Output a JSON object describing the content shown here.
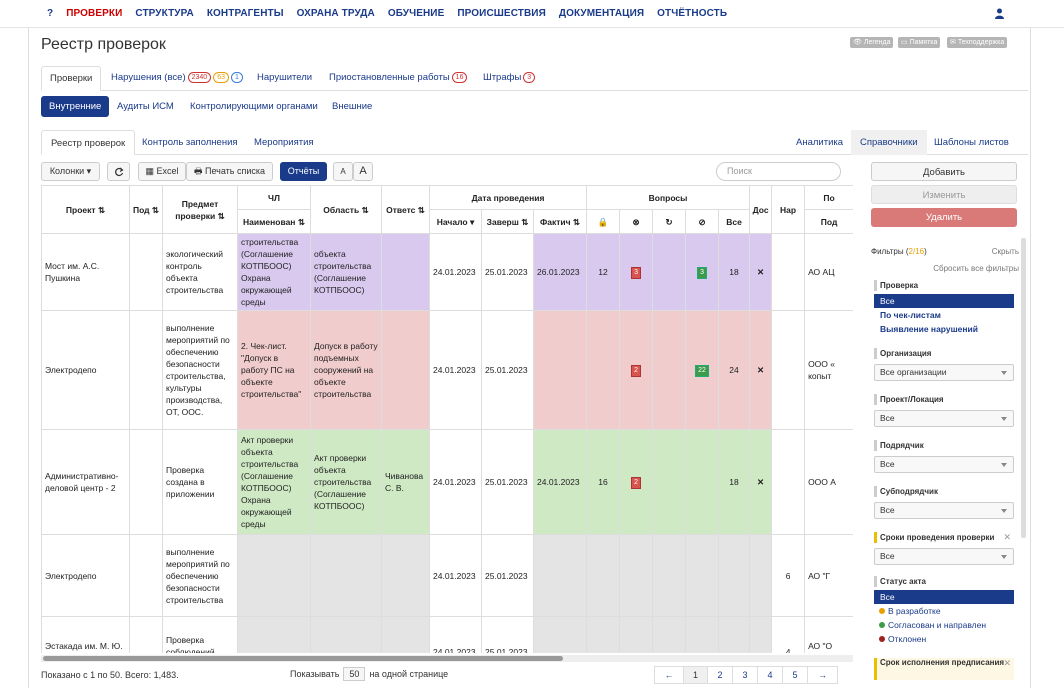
{
  "nav": {
    "help": "?",
    "items": [
      "ПРОВЕРКИ",
      "СТРУКТУРА",
      "КОНТРАГЕНТЫ",
      "ОХРАНА ТРУДА",
      "ОБУЧЕНИЕ",
      "ПРОИСШЕСТВИЯ",
      "ДОКУМЕНТАЦИЯ",
      "ОТЧЁТНОСТЬ"
    ],
    "active": "ПРОВЕРКИ"
  },
  "page": {
    "title": "Реестр проверок",
    "legend": "Легенда",
    "memo": "Памятка",
    "support": "Техподдержка"
  },
  "tabs1": {
    "checks": "Проверки",
    "violations": "Нарушения (все)",
    "v_count1": "2340",
    "v_count2": "63",
    "v_count3": "1",
    "violators": "Нарушители",
    "suspended": "Приостановленные работы",
    "s_count": "16",
    "fines": "Штрафы",
    "f_count": "3"
  },
  "subtabs": {
    "internal": "Внутренние",
    "audits": "Аудиты ИСМ",
    "control": "Контролирующими органами",
    "external": "Внешние"
  },
  "tabs2": {
    "registry": "Реестр проверок",
    "fill": "Контроль заполнения",
    "events": "Мероприятия",
    "analytics": "Аналитика",
    "refs": "Справочники",
    "templates": "Шаблоны листов"
  },
  "toolbar": {
    "columns": "Колонки",
    "excel": "Excel",
    "print": "Печать списка",
    "reports": "Отчёты",
    "font_small": "A",
    "font_large": "A",
    "search_placeholder": "Поиск"
  },
  "actions": {
    "add": "Добавить",
    "edit": "Изменить",
    "delete": "Удалить"
  },
  "grid": {
    "headers": {
      "project": "Проект",
      "sub": "Под",
      "subject": "Предмет проверки",
      "chl": "ЧЛ",
      "chl_name": "Наименован",
      "area": "Область",
      "resp": "Ответс",
      "date": "Дата проведения",
      "start": "Начало",
      "end": "Заверш",
      "fact": "Фактич",
      "questions": "Вопросы",
      "all": "Все",
      "doc": "Дос",
      "nar": "Нар",
      "po": "По",
      "pod": "Под"
    },
    "rows": [
      {
        "project": "Мост им. А.С. Пушкина",
        "subject": "экологический контроль объекта строительства",
        "name": "строительства (Соглашение КОТПБООС) Охрана окружающей среды",
        "area": "объекта строительства (Соглашение КОТПБООС)",
        "resp": "",
        "start": "24.01.2023",
        "end": "25.01.2023",
        "fact": "26.01.2023",
        "q1": "12",
        "q2": "3",
        "q3": "",
        "q4": "3",
        "all": "18",
        "doc": "✕",
        "nar": "",
        "po": "АО АЦ"
      },
      {
        "project": "Электродепо",
        "subject": "выполнение мероприятий по обеспечению безопасности строительства, культуры производства, ОТ, ООС.",
        "name": "2. Чек-лист. \"Допуск в работу ПС на объекте строительства\"",
        "area": "Допуск в работу подъемных сооружений на объекте строительства",
        "resp": "",
        "start": "24.01.2023",
        "end": "25.01.2023",
        "fact": "",
        "q1": "",
        "q2": "2",
        "q3": "",
        "q4": "22",
        "all": "24",
        "doc": "✕",
        "nar": "",
        "po": "ООО « копыт"
      },
      {
        "project": "Административно-деловой центр - 2",
        "subject": "Проверка создана в приложении",
        "name": "Акт проверки объекта строительства (Соглашение КОТПБООС) Охрана окружающей среды",
        "area": "Акт проверки объекта строительства (Соглашение КОТПБООС)",
        "resp": "Чиванова С. В.",
        "start": "24.01.2023",
        "end": "25.01.2023",
        "fact": "24.01.2023",
        "q1": "16",
        "q2": "2",
        "q3": "",
        "q4": "",
        "all": "18",
        "doc": "✕",
        "nar": "",
        "po": "ООО А"
      },
      {
        "project": "Электродепо",
        "subject": "выполнение мероприятий по обеспечению безопасности строительства",
        "name": "",
        "area": "",
        "resp": "",
        "start": "24.01.2023",
        "end": "25.01.2023",
        "fact": "",
        "q1": "",
        "q2": "",
        "q3": "",
        "q4": "",
        "all": "",
        "doc": "",
        "nar": "6",
        "po": "АО \"Г"
      },
      {
        "project": "Эстакада им. М. Ю. Лермонтова",
        "subject": "Проверка соблюдений требований",
        "name": "",
        "area": "",
        "resp": "",
        "start": "24.01.2023",
        "end": "25.01.2023",
        "fact": "",
        "q1": "",
        "q2": "",
        "q3": "",
        "q4": "",
        "all": "",
        "doc": "",
        "nar": "4",
        "po": "АО \"О \"ИНГЕ"
      }
    ]
  },
  "footer": {
    "shown": "Показано с 1 по 50. Всего: 1,483.",
    "show_label": "Показывать",
    "per_page": "50",
    "per_page_suffix": "на одной странице",
    "pages": [
      "←",
      "1",
      "2",
      "3",
      "4",
      "5",
      "→"
    ]
  },
  "filters": {
    "title": "Фильтры",
    "count": "2/16",
    "hide": "Скрыть",
    "reset": "Сбросить все фильтры",
    "check": {
      "label": "Проверка",
      "options": [
        "Все",
        "По чек-листам",
        "Выявление нарушений"
      ]
    },
    "org": {
      "label": "Организация",
      "value": "Все организации"
    },
    "project": {
      "label": "Проект/Локация",
      "value": "Все"
    },
    "contractor": {
      "label": "Подрядчик",
      "value": "Все"
    },
    "subcontractor": {
      "label": "Субподрядчик",
      "value": "Все"
    },
    "dates": {
      "label": "Сроки проведения проверки",
      "value": "Все"
    },
    "status": {
      "label": "Статус акта",
      "options": [
        "Все",
        "В разработке",
        "Согласован и направлен",
        "Отклонен"
      ]
    },
    "deadline": {
      "label": "Срок исполнения предписания"
    }
  },
  "colors": {
    "brand": "#1a3a8a",
    "active_nav": "#cc0000",
    "delete": "#d97a78",
    "purple": "#d9c9ef",
    "pink": "#f0cccc",
    "green": "#cfe9c5",
    "grey": "#e4e4e4",
    "status_dev": "#e8a000",
    "status_ok": "#3c9b4a",
    "status_rej": "#a02020"
  }
}
